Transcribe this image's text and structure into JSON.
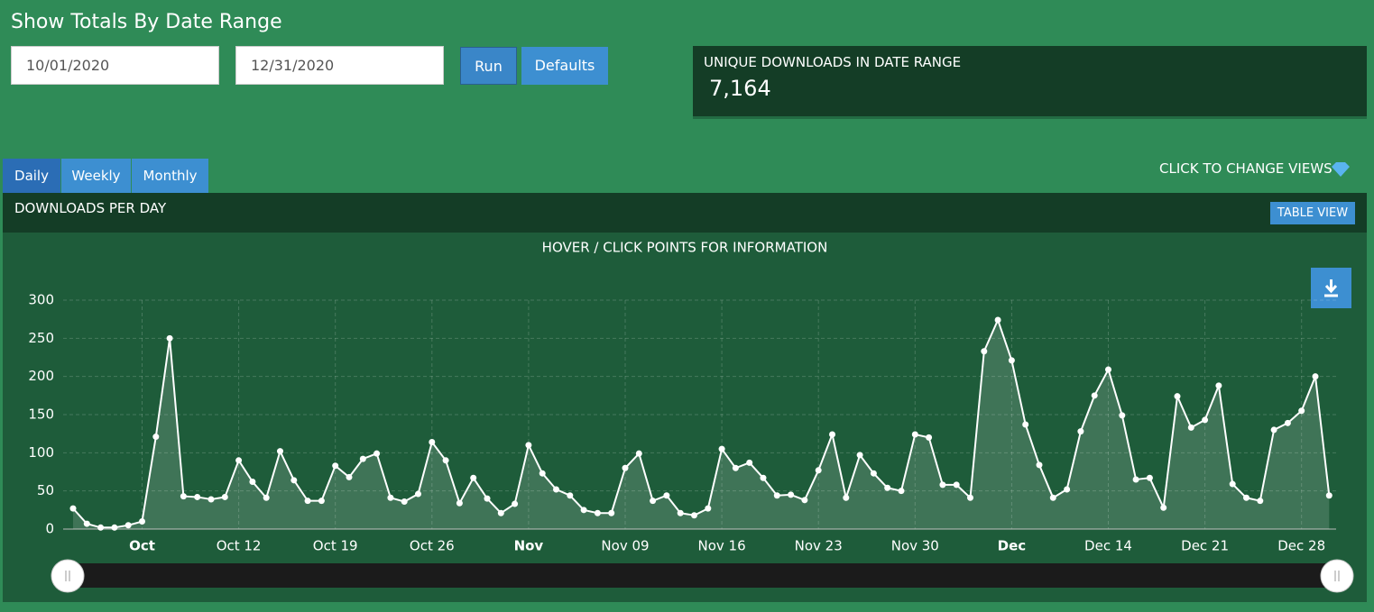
{
  "header": {
    "title": "Show Totals By Date Range"
  },
  "form": {
    "start_date": "10/01/2020",
    "end_date": "12/31/2020",
    "run": "Run",
    "defaults": "Defaults"
  },
  "stat": {
    "label": "UNIQUE DOWNLOADS IN DATE RANGE",
    "value": "7,164"
  },
  "tabs": [
    "Daily",
    "Weekly",
    "Monthly"
  ],
  "views_hint": "CLICK TO CHANGE VIEWS",
  "panel": {
    "title": "DOWNLOADS PER DAY",
    "table_view": "TABLE VIEW"
  },
  "chart_data": {
    "type": "line",
    "subtitle": "HOVER / CLICK POINTS FOR INFORMATION",
    "color": "#ffffff",
    "values": [
      27,
      7,
      2,
      2,
      5,
      10,
      121,
      250,
      43,
      42,
      39,
      42,
      90,
      62,
      41,
      102,
      64,
      37,
      37,
      83,
      68,
      92,
      99,
      41,
      36,
      46,
      114,
      90,
      34,
      67,
      40,
      21,
      33,
      110,
      73,
      52,
      44,
      25,
      21,
      21,
      80,
      99,
      37,
      44,
      21,
      18,
      27,
      105,
      80,
      87,
      67,
      44,
      45,
      38,
      77,
      124,
      41,
      97,
      73,
      54,
      50,
      124,
      120,
      58,
      58,
      41,
      233,
      274,
      221,
      137,
      84,
      41,
      52,
      128,
      175,
      209,
      149,
      65,
      67,
      28,
      174,
      133,
      143,
      188,
      59,
      41,
      37,
      130,
      139,
      155,
      200,
      44
    ],
    "ylim": [
      0,
      300
    ],
    "yticks": [
      0,
      50,
      100,
      150,
      200,
      250,
      300
    ],
    "xticks": [
      {
        "value": 5,
        "label": "Oct"
      },
      {
        "value": 12,
        "label": "Oct 12"
      },
      {
        "value": 19,
        "label": "Oct 19"
      },
      {
        "value": 26,
        "label": "Oct 26"
      },
      {
        "value": 33,
        "label": "Nov"
      },
      {
        "value": 40,
        "label": "Nov 09"
      },
      {
        "value": 47,
        "label": "Nov 16"
      },
      {
        "value": 54,
        "label": "Nov 23"
      },
      {
        "value": 61,
        "label": "Nov 30"
      },
      {
        "value": 68,
        "label": "Dec"
      },
      {
        "value": 75,
        "label": "Dec 14"
      },
      {
        "value": 82,
        "label": "Dec 21"
      },
      {
        "value": 89,
        "label": "Dec 28"
      }
    ],
    "grid": true
  }
}
